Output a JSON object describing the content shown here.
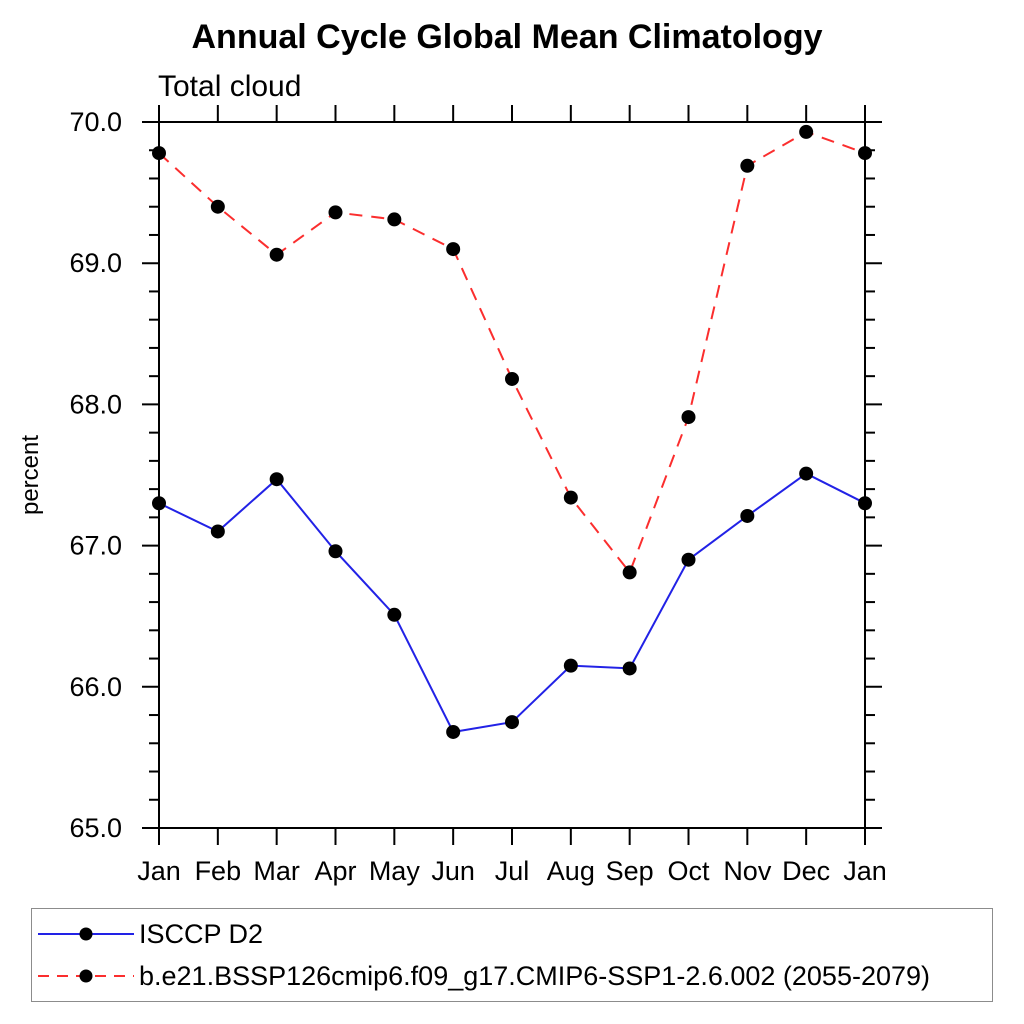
{
  "chart": {
    "title": "Annual Cycle Global Mean Climatology",
    "subtitle": "Total cloud",
    "y_axis_label": "percent"
  },
  "chart_data": {
    "type": "line",
    "title": "Annual Cycle Global Mean Climatology",
    "subtitle": "Total cloud",
    "xlabel": "",
    "ylabel": "percent",
    "categories": [
      "Jan",
      "Feb",
      "Mar",
      "Apr",
      "May",
      "Jun",
      "Jul",
      "Aug",
      "Sep",
      "Oct",
      "Nov",
      "Dec",
      "Jan"
    ],
    "ylim": [
      65.0,
      70.0
    ],
    "y_major_step": 1.0,
    "y_minor_step": 0.2,
    "y_tick_format_decimals": 1,
    "grid": false,
    "legend_position": "bottom",
    "axis_color": "#000000",
    "marker_color": "#000000",
    "series": [
      {
        "name": "ISCCP D2",
        "color": "#2222e6",
        "line_style": "solid",
        "marker": "circle",
        "values": [
          67.3,
          67.1,
          67.47,
          66.96,
          66.51,
          65.68,
          65.75,
          66.15,
          66.13,
          66.9,
          67.21,
          67.51,
          67.3
        ]
      },
      {
        "name": "b.e21.BSSP126cmip6.f09_g17.CMIP6-SSP1-2.6.002 (2055-2079)",
        "color": "#fb2e2e",
        "line_style": "dashed",
        "marker": "circle",
        "values": [
          69.78,
          69.4,
          69.06,
          69.36,
          69.31,
          69.1,
          68.18,
          67.34,
          66.81,
          67.91,
          69.69,
          69.93,
          69.78
        ]
      }
    ]
  }
}
